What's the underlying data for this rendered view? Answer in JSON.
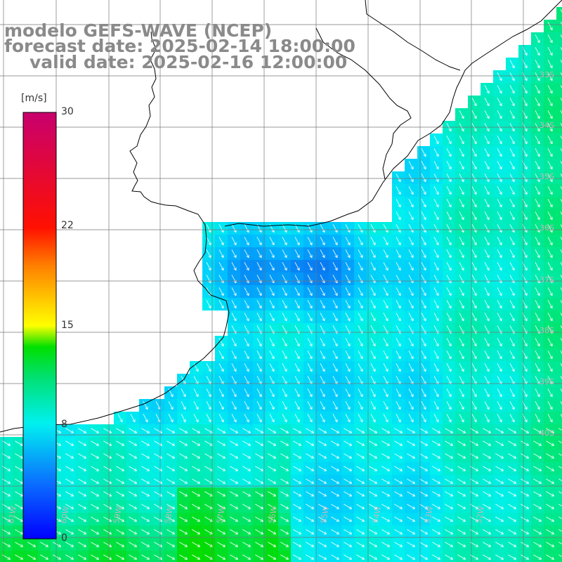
{
  "title": {
    "line1": "modelo GEFS-WAVE (NCEP)",
    "line2": "forecast date: 2025-02-14 18:00:00",
    "line3": "valid date: 2025-02-16 12:00:00"
  },
  "colorbar": {
    "unit": "[m/s]",
    "ticks": [
      "30",
      "22",
      "15",
      "8",
      "0"
    ],
    "tick_values": [
      30,
      22,
      15,
      8,
      0
    ],
    "range": [
      0,
      30
    ],
    "colors": [
      "#0000ff",
      "#0a7dff",
      "#00e8ff",
      "#00e000",
      "#ffff00",
      "#ff8000",
      "#ff0000",
      "#c8006e"
    ]
  },
  "axes": {
    "lat_labels": [
      "33S",
      "34S",
      "35S",
      "36S",
      "37S",
      "38S",
      "39S",
      "40S"
    ],
    "lon_labels": [
      "61W",
      "60W",
      "59W",
      "58W",
      "57W",
      "56W",
      "55W",
      "54W",
      "53W",
      "52W"
    ]
  },
  "map_colors": {
    "land": "#ffffff",
    "coast": "#000000",
    "grid": "#777777",
    "arrow": "#ffffff"
  }
}
